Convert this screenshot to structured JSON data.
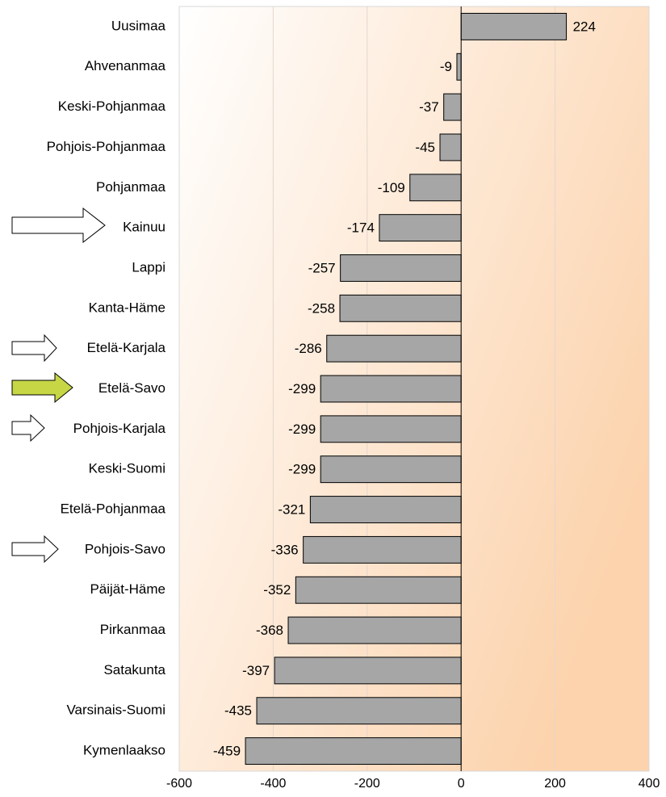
{
  "chart_data": {
    "type": "bar",
    "categories": [
      "Uusimaa",
      "Ahvenanmaa",
      "Keski-Pohjanmaa",
      "Pohjois-Pohjanmaa",
      "Pohjanmaa",
      "Kainuu",
      "Lappi",
      "Kanta-Häme",
      "Etelä-Karjala",
      "Etelä-Savo",
      "Pohjois-Karjala",
      "Keski-Suomi",
      "Etelä-Pohjanmaa",
      "Pohjois-Savo",
      "Päijät-Häme",
      "Pirkanmaa",
      "Satakunta",
      "Varsinais-Suomi",
      "Kymenlaakso"
    ],
    "values": [
      224,
      -9,
      -37,
      -45,
      -109,
      -174,
      -257,
      -258,
      -286,
      -299,
      -299,
      -299,
      -321,
      -336,
      -352,
      -368,
      -397,
      -435,
      -459
    ],
    "color": "#a6a6a6",
    "xlim": [
      -600,
      400
    ],
    "xticks": [
      -600,
      -400,
      -200,
      0,
      200,
      400
    ],
    "grid": true
  }
}
